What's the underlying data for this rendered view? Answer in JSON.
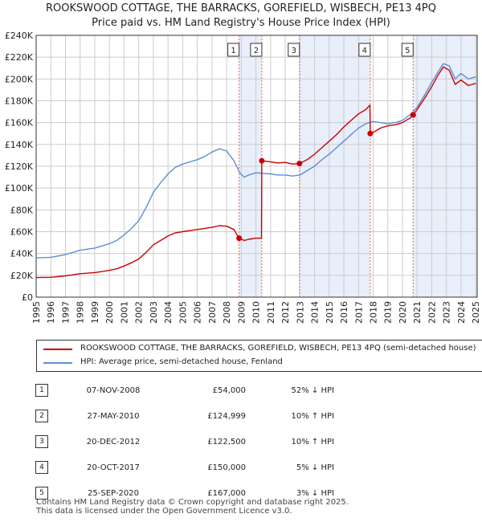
{
  "title_line1": "ROOKSWOOD COTTAGE, THE BARRACKS, GOREFIELD, WISBECH, PE13 4PQ",
  "title_line2": "Price paid vs. HM Land Registry's House Price Index (HPI)",
  "legend": {
    "property_label": "ROOKSWOOD COTTAGE, THE BARRACKS, GOREFIELD, WISBECH, PE13 4PQ (semi-detached house)",
    "hpi_label": "HPI: Average price, semi-detached house, Fenland"
  },
  "colors": {
    "property_line": "#cc0000",
    "hpi_line": "#5b8fd6",
    "shade": "#e8eefa",
    "grid": "#cccccc",
    "sale_marker_line": "#e06666"
  },
  "sales": [
    {
      "num": "1",
      "date": "07-NOV-2008",
      "price": "£54,000",
      "hpi": "52% ↓ HPI"
    },
    {
      "num": "2",
      "date": "27-MAY-2010",
      "price": "£124,999",
      "hpi": "10% ↑ HPI"
    },
    {
      "num": "3",
      "date": "20-DEC-2012",
      "price": "£122,500",
      "hpi": "10% ↑ HPI"
    },
    {
      "num": "4",
      "date": "20-OCT-2017",
      "price": "£150,000",
      "hpi": "5% ↓ HPI"
    },
    {
      "num": "5",
      "date": "25-SEP-2020",
      "price": "£167,000",
      "hpi": "3% ↓ HPI"
    }
  ],
  "footer_line1": "Contains HM Land Registry data © Crown copyright and database right 2025.",
  "footer_line2": "This data is licensed under the Open Government Licence v3.0.",
  "chart_data": {
    "type": "line",
    "title": "ROOKSWOOD COTTAGE, THE BARRACKS, GOREFIELD, WISBECH, PE13 4PQ — Price paid vs. HM Land Registry's House Price Index (HPI)",
    "xlabel": "",
    "ylabel": "",
    "xlim": [
      1995,
      2025.1
    ],
    "ylim": [
      0,
      240000
    ],
    "x_ticks": [
      1995,
      1996,
      1997,
      1998,
      1999,
      2000,
      2001,
      2002,
      2003,
      2004,
      2005,
      2006,
      2007,
      2008,
      2009,
      2010,
      2011,
      2012,
      2013,
      2014,
      2015,
      2016,
      2017,
      2018,
      2019,
      2020,
      2021,
      2022,
      2023,
      2024,
      2025
    ],
    "y_ticks": [
      0,
      20000,
      40000,
      60000,
      80000,
      100000,
      120000,
      140000,
      160000,
      180000,
      200000,
      220000,
      240000
    ],
    "y_tick_labels": [
      "£0",
      "£20K",
      "£40K",
      "£60K",
      "£80K",
      "£100K",
      "£120K",
      "£140K",
      "£160K",
      "£180K",
      "£200K",
      "£220K",
      "£240K"
    ],
    "grid": true,
    "series": [
      {
        "name": "HPI: Average price, semi-detached house, Fenland",
        "x": [
          1995.0,
          1996.0,
          1997.0,
          1997.5,
          1998.0,
          1999.0,
          2000.0,
          2000.5,
          2001.0,
          2001.5,
          2002.0,
          2002.5,
          2003.0,
          2003.5,
          2004.0,
          2004.5,
          2005.0,
          2005.5,
          2006.0,
          2006.5,
          2007.0,
          2007.5,
          2008.0,
          2008.5,
          2008.9,
          2009.2,
          2009.5,
          2010.0,
          2010.4,
          2011.0,
          2011.5,
          2012.0,
          2012.5,
          2013.0,
          2013.5,
          2014.0,
          2014.5,
          2015.0,
          2015.5,
          2016.0,
          2016.5,
          2017.0,
          2017.5,
          2018.0,
          2018.5,
          2019.0,
          2019.5,
          2020.0,
          2020.5,
          2021.0,
          2021.5,
          2022.0,
          2022.4,
          2022.8,
          2023.2,
          2023.6,
          2024.0,
          2024.5,
          2025.0
        ],
        "values": [
          36000,
          36500,
          39000,
          41000,
          43000,
          45000,
          49000,
          52000,
          57000,
          63000,
          70000,
          82000,
          96000,
          105000,
          113000,
          119000,
          122000,
          124000,
          126000,
          129000,
          133000,
          136000,
          134000,
          125000,
          114000,
          110000,
          112000,
          114000,
          113500,
          113000,
          112000,
          112000,
          111000,
          112000,
          116000,
          120000,
          126000,
          131000,
          137000,
          143000,
          149000,
          155000,
          159000,
          161000,
          160000,
          159000,
          160000,
          162000,
          167000,
          174000,
          185000,
          197000,
          206000,
          214000,
          212000,
          200000,
          205000,
          200000,
          202000
        ]
      },
      {
        "name": "ROOKSWOOD COTTAGE, THE BARRACKS, GOREFIELD, WISBECH, PE13 4PQ (semi-detached house)",
        "x": [
          1995.0,
          1996.0,
          1997.0,
          1997.5,
          1998.0,
          1999.0,
          2000.0,
          2000.5,
          2001.0,
          2001.5,
          2002.0,
          2002.5,
          2003.0,
          2003.5,
          2004.0,
          2004.5,
          2005.0,
          2005.5,
          2006.0,
          2006.5,
          2007.0,
          2007.5,
          2008.0,
          2008.5,
          2008.85,
          2009.2,
          2009.5,
          2010.0,
          2010.38,
          2010.4,
          2011.0,
          2011.5,
          2012.0,
          2012.5,
          2012.97,
          2013.5,
          2014.0,
          2014.5,
          2015.0,
          2015.5,
          2016.0,
          2016.5,
          2017.0,
          2017.5,
          2017.78,
          2017.8,
          2018.0,
          2018.5,
          2019.0,
          2019.5,
          2020.0,
          2020.5,
          2020.73,
          2021.0,
          2021.5,
          2022.0,
          2022.4,
          2022.8,
          2023.2,
          2023.6,
          2024.0,
          2024.5,
          2025.0
        ],
        "values": [
          18000,
          18200,
          19500,
          20500,
          21500,
          22500,
          24500,
          26000,
          28500,
          31500,
          35000,
          41000,
          48000,
          52000,
          56000,
          59000,
          60000,
          61000,
          62000,
          63000,
          64000,
          65500,
          65000,
          62000,
          54000,
          52000,
          53000,
          54000,
          54000,
          124999,
          124000,
          123000,
          123500,
          122000,
          122500,
          126000,
          131000,
          137000,
          143000,
          149000,
          156000,
          162000,
          168000,
          172000,
          176000,
          150000,
          151000,
          155000,
          157000,
          158000,
          160000,
          164000,
          167000,
          172000,
          182000,
          193000,
          203000,
          211000,
          208000,
          195000,
          199000,
          194000,
          196000
        ]
      }
    ],
    "sale_markers": [
      {
        "label": "1",
        "x": 2008.85,
        "value": 54000
      },
      {
        "label": "2",
        "x": 2010.4,
        "value": 124999
      },
      {
        "label": "3",
        "x": 2012.97,
        "value": 122500
      },
      {
        "label": "4",
        "x": 2017.8,
        "value": 150000
      },
      {
        "label": "5",
        "x": 2020.73,
        "value": 167000
      }
    ],
    "shaded_ranges": [
      [
        2008.85,
        2010.4
      ],
      [
        2012.97,
        2017.8
      ],
      [
        2020.73,
        2025.1
      ]
    ]
  }
}
